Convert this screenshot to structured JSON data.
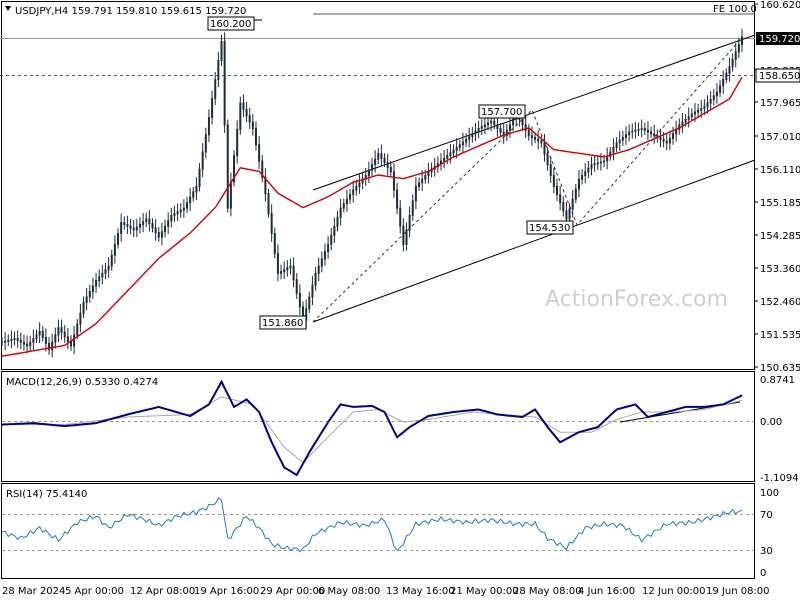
{
  "chart_data": [
    {
      "type": "candlestick",
      "header": "USDJPY,H4  159.791 159.810 159.615 159.720",
      "ylim": [
        150.63,
        160.62
      ],
      "y_ticks": [
        "160.620",
        "159.720",
        "158.835",
        "158.650",
        "157.965",
        "157.010",
        "156.110",
        "155.185",
        "154.285",
        "153.360",
        "152.460",
        "151.535",
        "150.635"
      ],
      "current_price": "159.720",
      "level_line": "158.650",
      "fe_label": "FE 100.0",
      "annotations": [
        "160.200",
        "157.700",
        "154.530",
        "151.860"
      ],
      "pivots": [
        {
          "label": "151.860",
          "value": 151.86
        },
        {
          "label": "157.700",
          "value": 157.7
        },
        {
          "label": "154.530",
          "value": 154.53
        },
        {
          "label": "160.200",
          "value": 160.2
        }
      ],
      "watermark": "ActionForex.com",
      "close_path": [
        [
          0,
          151.3
        ],
        [
          4,
          151.4
        ],
        [
          8,
          151.2
        ],
        [
          12,
          151.6
        ],
        [
          15,
          151.1
        ],
        [
          18,
          151.7
        ],
        [
          22,
          151.2
        ],
        [
          26,
          152.4
        ],
        [
          30,
          153.0
        ],
        [
          34,
          153.4
        ],
        [
          38,
          154.6
        ],
        [
          42,
          154.4
        ],
        [
          46,
          154.7
        ],
        [
          50,
          154.2
        ],
        [
          54,
          154.8
        ],
        [
          58,
          155.0
        ],
        [
          62,
          155.6
        ],
        [
          66,
          157.5
        ],
        [
          70,
          159.6
        ],
        [
          72,
          155.0
        ],
        [
          76,
          157.9
        ],
        [
          80,
          157.2
        ],
        [
          84,
          155.4
        ],
        [
          88,
          153.2
        ],
        [
          92,
          153.4
        ],
        [
          96,
          151.9
        ],
        [
          100,
          153.2
        ],
        [
          104,
          154.0
        ],
        [
          108,
          155.0
        ],
        [
          112,
          155.5
        ],
        [
          116,
          155.9
        ],
        [
          120,
          156.5
        ],
        [
          124,
          156.0
        ],
        [
          128,
          154.0
        ],
        [
          132,
          155.6
        ],
        [
          136,
          156.0
        ],
        [
          140,
          156.3
        ],
        [
          144,
          156.6
        ],
        [
          148,
          156.9
        ],
        [
          152,
          157.2
        ],
        [
          156,
          157.4
        ],
        [
          160,
          157.0
        ],
        [
          164,
          157.6
        ],
        [
          168,
          157.0
        ],
        [
          172,
          156.8
        ],
        [
          176,
          155.6
        ],
        [
          180,
          154.7
        ],
        [
          184,
          155.8
        ],
        [
          188,
          156.2
        ],
        [
          192,
          156.3
        ],
        [
          196,
          156.8
        ],
        [
          200,
          157.1
        ],
        [
          204,
          157.2
        ],
        [
          208,
          157.0
        ],
        [
          212,
          156.8
        ],
        [
          216,
          157.3
        ],
        [
          220,
          157.6
        ],
        [
          224,
          157.8
        ],
        [
          228,
          158.2
        ],
        [
          232,
          158.9
        ],
        [
          236,
          159.72
        ]
      ],
      "ma_path": [
        [
          0,
          150.9
        ],
        [
          20,
          151.2
        ],
        [
          30,
          151.8
        ],
        [
          40,
          152.7
        ],
        [
          50,
          153.6
        ],
        [
          60,
          154.3
        ],
        [
          68,
          155.0
        ],
        [
          76,
          156.1
        ],
        [
          82,
          156.0
        ],
        [
          88,
          155.4
        ],
        [
          96,
          155.0
        ],
        [
          104,
          155.3
        ],
        [
          112,
          155.7
        ],
        [
          120,
          155.9
        ],
        [
          128,
          155.8
        ],
        [
          136,
          156.0
        ],
        [
          144,
          156.4
        ],
        [
          152,
          156.7
        ],
        [
          160,
          157.0
        ],
        [
          168,
          157.2
        ],
        [
          176,
          156.6
        ],
        [
          184,
          156.5
        ],
        [
          192,
          156.4
        ],
        [
          200,
          156.6
        ],
        [
          208,
          156.9
        ],
        [
          216,
          157.2
        ],
        [
          224,
          157.6
        ],
        [
          232,
          158.0
        ],
        [
          236,
          158.6
        ]
      ]
    },
    {
      "type": "line",
      "header": "MACD(12,26,9) 0.5330 0.4274",
      "ylim": [
        -1.1094,
        0.8741
      ],
      "y_ticks": [
        "0.8741",
        "0.00",
        "-1.1094"
      ],
      "macd": [
        [
          0,
          -0.05
        ],
        [
          10,
          -0.02
        ],
        [
          20,
          -0.08
        ],
        [
          30,
          -0.02
        ],
        [
          40,
          0.15
        ],
        [
          50,
          0.3
        ],
        [
          60,
          0.12
        ],
        [
          66,
          0.35
        ],
        [
          70,
          0.8
        ],
        [
          74,
          0.3
        ],
        [
          78,
          0.45
        ],
        [
          82,
          0.2
        ],
        [
          86,
          -0.4
        ],
        [
          90,
          -0.9
        ],
        [
          94,
          -1.05
        ],
        [
          98,
          -0.6
        ],
        [
          104,
          0.0
        ],
        [
          108,
          0.35
        ],
        [
          112,
          0.3
        ],
        [
          118,
          0.32
        ],
        [
          122,
          0.2
        ],
        [
          126,
          -0.3
        ],
        [
          130,
          -0.1
        ],
        [
          136,
          0.12
        ],
        [
          144,
          0.2
        ],
        [
          152,
          0.25
        ],
        [
          158,
          0.15
        ],
        [
          166,
          0.1
        ],
        [
          170,
          0.25
        ],
        [
          174,
          -0.1
        ],
        [
          178,
          -0.4
        ],
        [
          184,
          -0.2
        ],
        [
          190,
          -0.1
        ],
        [
          196,
          0.25
        ],
        [
          202,
          0.35
        ],
        [
          206,
          0.1
        ],
        [
          212,
          0.2
        ],
        [
          218,
          0.3
        ],
        [
          224,
          0.3
        ],
        [
          230,
          0.35
        ],
        [
          236,
          0.53
        ]
      ],
      "signal": [
        [
          0,
          -0.05
        ],
        [
          20,
          -0.05
        ],
        [
          40,
          0.1
        ],
        [
          60,
          0.15
        ],
        [
          70,
          0.5
        ],
        [
          80,
          0.35
        ],
        [
          90,
          -0.5
        ],
        [
          96,
          -0.8
        ],
        [
          104,
          -0.3
        ],
        [
          112,
          0.2
        ],
        [
          120,
          0.25
        ],
        [
          128,
          0.0
        ],
        [
          136,
          0.05
        ],
        [
          150,
          0.2
        ],
        [
          160,
          0.15
        ],
        [
          170,
          0.1
        ],
        [
          178,
          -0.2
        ],
        [
          188,
          -0.2
        ],
        [
          196,
          0.05
        ],
        [
          204,
          0.2
        ],
        [
          214,
          0.2
        ],
        [
          224,
          0.25
        ],
        [
          236,
          0.43
        ]
      ]
    },
    {
      "type": "line",
      "header": "RSI(14) 75.4140",
      "ylim": [
        0,
        100
      ],
      "y_ticks": [
        "100",
        "70",
        "30",
        "0"
      ],
      "rsi": [
        [
          0,
          50
        ],
        [
          6,
          42
        ],
        [
          12,
          55
        ],
        [
          18,
          40
        ],
        [
          24,
          62
        ],
        [
          30,
          70
        ],
        [
          34,
          55
        ],
        [
          40,
          72
        ],
        [
          46,
          65
        ],
        [
          50,
          58
        ],
        [
          56,
          70
        ],
        [
          62,
          75
        ],
        [
          66,
          82
        ],
        [
          70,
          92
        ],
        [
          72,
          40
        ],
        [
          78,
          70
        ],
        [
          82,
          55
        ],
        [
          86,
          35
        ],
        [
          90,
          30
        ],
        [
          96,
          28
        ],
        [
          100,
          48
        ],
        [
          108,
          62
        ],
        [
          116,
          58
        ],
        [
          122,
          66
        ],
        [
          126,
          25
        ],
        [
          132,
          60
        ],
        [
          140,
          66
        ],
        [
          148,
          62
        ],
        [
          156,
          65
        ],
        [
          164,
          60
        ],
        [
          170,
          60
        ],
        [
          174,
          42
        ],
        [
          180,
          30
        ],
        [
          186,
          55
        ],
        [
          192,
          60
        ],
        [
          198,
          58
        ],
        [
          204,
          40
        ],
        [
          212,
          60
        ],
        [
          220,
          62
        ],
        [
          226,
          68
        ],
        [
          232,
          75
        ],
        [
          236,
          75.4
        ]
      ]
    }
  ],
  "x_axis": {
    "labels": [
      "28 Mar 2024",
      "5 Apr 00:00",
      "12 Apr 08:00",
      "19 Apr 16:00",
      "29 Apr 00:00",
      "6 May 08:00",
      "13 May 16:00",
      "21 May 00:00",
      "28 May 08:00",
      "4 Jun 16:00",
      "12 Jun 00:00",
      "19 Jun 08:00"
    ]
  },
  "colors": {
    "candle": "#1b2b3b",
    "ma": "#d40000",
    "macd": "#00008b",
    "signal": "#a8a8a8",
    "rsi": "#1e78d8",
    "grid": "#9a9a9a"
  }
}
